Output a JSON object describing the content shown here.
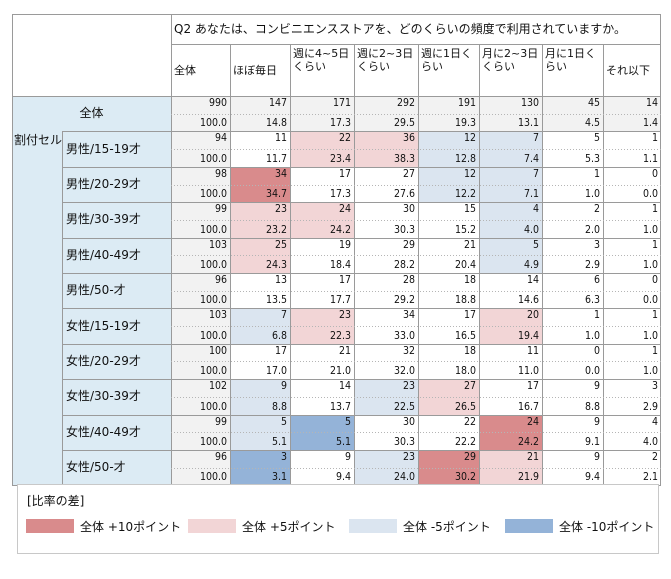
{
  "colors": {
    "plus10": "#d98b8c",
    "plus5": "#f2d5d6",
    "minus5": "#dbe5f0",
    "minus10": "#94b3d8",
    "label_bg": "#dcebf4",
    "total_bg": "#f2f2f2",
    "none": "#ffffff"
  },
  "chart_data": {
    "type": "table",
    "title": "Q2 あなたは、コンビニエンスストアを、どのくらいの頻度で利用されていますか。",
    "columns": [
      "全体",
      "ほぼ毎日",
      "週に4~5日くらい",
      "週に2~3日くらい",
      "週に1日くらい",
      "月に2~3日くらい",
      "月に1日くらい",
      "それ以下"
    ],
    "total_row": {
      "label": "全体",
      "n": [
        "990",
        "147",
        "171",
        "292",
        "191",
        "130",
        "45",
        "14"
      ],
      "pct": [
        "100.0",
        "14.8",
        "17.3",
        "29.5",
        "19.3",
        "13.1",
        "4.5",
        "1.4"
      ]
    },
    "group_label": "割付セル",
    "rows": [
      {
        "label": "男性/15-19才",
        "n": [
          "94",
          "11",
          "22",
          "36",
          "12",
          "7",
          "5",
          "1"
        ],
        "pct": [
          "100.0",
          "11.7",
          "23.4",
          "38.3",
          "12.8",
          "7.4",
          "5.3",
          "1.1"
        ],
        "shade": [
          "",
          "",
          "plus5",
          "plus5",
          "minus5",
          "minus5",
          "",
          ""
        ]
      },
      {
        "label": "男性/20-29才",
        "n": [
          "98",
          "34",
          "17",
          "27",
          "12",
          "7",
          "1",
          "0"
        ],
        "pct": [
          "100.0",
          "34.7",
          "17.3",
          "27.6",
          "12.2",
          "7.1",
          "1.0",
          "0.0"
        ],
        "shade": [
          "",
          "plus10",
          "",
          "",
          "minus5",
          "minus5",
          "",
          ""
        ]
      },
      {
        "label": "男性/30-39才",
        "n": [
          "99",
          "23",
          "24",
          "30",
          "15",
          "4",
          "2",
          "1"
        ],
        "pct": [
          "100.0",
          "23.2",
          "24.2",
          "30.3",
          "15.2",
          "4.0",
          "2.0",
          "1.0"
        ],
        "shade": [
          "",
          "plus5",
          "plus5",
          "",
          "",
          "minus5",
          "",
          ""
        ]
      },
      {
        "label": "男性/40-49才",
        "n": [
          "103",
          "25",
          "19",
          "29",
          "21",
          "5",
          "3",
          "1"
        ],
        "pct": [
          "100.0",
          "24.3",
          "18.4",
          "28.2",
          "20.4",
          "4.9",
          "2.9",
          "1.0"
        ],
        "shade": [
          "",
          "plus5",
          "",
          "",
          "",
          "minus5",
          "",
          ""
        ]
      },
      {
        "label": "男性/50-才",
        "n": [
          "96",
          "13",
          "17",
          "28",
          "18",
          "14",
          "6",
          "0"
        ],
        "pct": [
          "100.0",
          "13.5",
          "17.7",
          "29.2",
          "18.8",
          "14.6",
          "6.3",
          "0.0"
        ],
        "shade": [
          "",
          "",
          "",
          "",
          "",
          "",
          "",
          ""
        ]
      },
      {
        "label": "女性/15-19才",
        "n": [
          "103",
          "7",
          "23",
          "34",
          "17",
          "20",
          "1",
          "1"
        ],
        "pct": [
          "100.0",
          "6.8",
          "22.3",
          "33.0",
          "16.5",
          "19.4",
          "1.0",
          "1.0"
        ],
        "shade": [
          "",
          "minus5",
          "plus5",
          "",
          "",
          "plus5",
          "",
          ""
        ]
      },
      {
        "label": "女性/20-29才",
        "n": [
          "100",
          "17",
          "21",
          "32",
          "18",
          "11",
          "0",
          "1"
        ],
        "pct": [
          "100.0",
          "17.0",
          "21.0",
          "32.0",
          "18.0",
          "11.0",
          "0.0",
          "1.0"
        ],
        "shade": [
          "",
          "",
          "",
          "",
          "",
          "",
          "",
          ""
        ]
      },
      {
        "label": "女性/30-39才",
        "n": [
          "102",
          "9",
          "14",
          "23",
          "27",
          "17",
          "9",
          "3"
        ],
        "pct": [
          "100.0",
          "8.8",
          "13.7",
          "22.5",
          "26.5",
          "16.7",
          "8.8",
          "2.9"
        ],
        "shade": [
          "",
          "minus5",
          "",
          "minus5",
          "plus5",
          "",
          "",
          ""
        ]
      },
      {
        "label": "女性/40-49才",
        "n": [
          "99",
          "5",
          "5",
          "30",
          "22",
          "24",
          "9",
          "4"
        ],
        "pct": [
          "100.0",
          "5.1",
          "5.1",
          "30.3",
          "22.2",
          "24.2",
          "9.1",
          "4.0"
        ],
        "shade": [
          "",
          "minus5",
          "minus10",
          "",
          "",
          "plus10",
          "",
          ""
        ]
      },
      {
        "label": "女性/50-才",
        "n": [
          "96",
          "3",
          "9",
          "23",
          "29",
          "21",
          "9",
          "2"
        ],
        "pct": [
          "100.0",
          "3.1",
          "9.4",
          "24.0",
          "30.2",
          "21.9",
          "9.4",
          "2.1"
        ],
        "shade": [
          "",
          "minus10",
          "",
          "minus5",
          "plus10",
          "plus5",
          "",
          ""
        ]
      }
    ]
  },
  "legend": {
    "title": "[比率の差]",
    "items": [
      {
        "key": "plus10",
        "label": "全体  +10ポイント"
      },
      {
        "key": "plus5",
        "label": "全体  +5ポイント"
      },
      {
        "key": "minus5",
        "label": "全体  -5ポイント"
      },
      {
        "key": "minus10",
        "label": "全体  -10ポイント"
      }
    ]
  }
}
